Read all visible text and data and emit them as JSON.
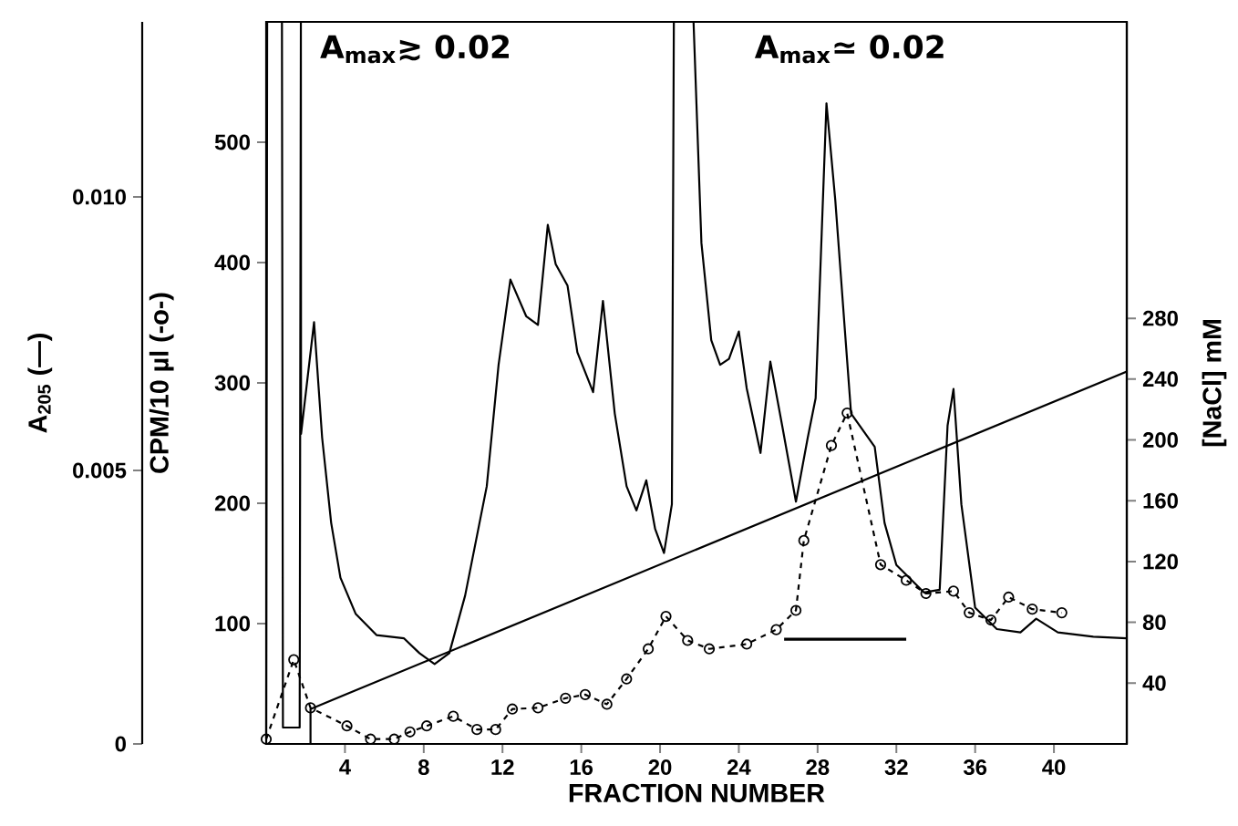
{
  "chart_data": {
    "type": "line",
    "xlabel": "FRACTION NUMBER",
    "ylabel": "CPM/10 µl (-o-)",
    "y2label": "[NaCl] mM",
    "y3label": "A$_{205}$  (—)",
    "xlim": [
      0,
      43.7
    ],
    "xticks": [
      4,
      8,
      12,
      16,
      20,
      24,
      28,
      32,
      36,
      40
    ],
    "ylim": [
      0,
      600
    ],
    "yticks": [
      100,
      200,
      300,
      400,
      500
    ],
    "y2lim": [
      0,
      475
    ],
    "y2ticks": [
      40,
      80,
      120,
      160,
      200,
      240,
      280
    ],
    "y3lim": [
      0,
      0.0132
    ],
    "y3ticks": [
      0,
      0.005,
      {
        "value": 0.01,
        "label": "0.010"
      }
    ],
    "annotations": [
      "A$_{max}$≳ 0.02",
      "A$_{max}$≃ 0.02"
    ],
    "series": [
      {
        "axis": "y3",
        "color": "#000000",
        "line_style": "solid",
        "marker": "none",
        "x": [
          0,
          0.05,
          0.8,
          0.85,
          1.7,
          1.76,
          1.77,
          2.43,
          2.84,
          3.3,
          3.77,
          4.54,
          5.6,
          7.0,
          7.78,
          8.55,
          9.3,
          10.1,
          11.2,
          11.8,
          12.4,
          13.2,
          13.8,
          14.3,
          14.7,
          15.3,
          15.8,
          16.6,
          17.1,
          17.7,
          18.3,
          18.8,
          19.3,
          19.75,
          20.2,
          20.6,
          20.7,
          21.7,
          22.1,
          22.6,
          23.05,
          23.5,
          24.0,
          24.4,
          25.1,
          25.6,
          26.2,
          26.9,
          27.5,
          27.9,
          28.45,
          28.9,
          29.4,
          29.7,
          30.9,
          31.4,
          32.0,
          33.4,
          34.2,
          34.6,
          34.9,
          35.3,
          36.0,
          37.1,
          38.3,
          39.1,
          40.2,
          42.0,
          43.7
        ],
        "values": [
          0.0001,
          0.0132,
          0.0132,
          0.0003,
          0.0003,
          0.0132,
          0.00567,
          0.00771,
          0.0056,
          0.00404,
          0.00304,
          0.00238,
          0.00199,
          0.00193,
          0.00166,
          0.00146,
          0.00166,
          0.00271,
          0.00471,
          0.00693,
          0.00849,
          0.00782,
          0.00766,
          0.00949,
          0.00877,
          0.00838,
          0.00716,
          0.00643,
          0.0081,
          0.00604,
          0.00471,
          0.00427,
          0.00482,
          0.00393,
          0.00349,
          0.00438,
          0.0132,
          0.0132,
          0.00916,
          0.00738,
          0.00693,
          0.00704,
          0.00754,
          0.0065,
          0.00532,
          0.00699,
          0.00582,
          0.00443,
          0.0056,
          0.00632,
          0.01171,
          0.00993,
          0.00749,
          0.00604,
          0.00543,
          0.00404,
          0.00327,
          0.00277,
          0.00282,
          0.00582,
          0.00649,
          0.00438,
          0.00249,
          0.0021,
          0.00204,
          0.00229,
          0.00204,
          0.00196,
          0.00193
        ]
      },
      {
        "axis": "y",
        "color": "#000000",
        "line_style": "dashed",
        "marker": "circle",
        "x": [
          0,
          1.4,
          2.25,
          4.1,
          5.3,
          6.5,
          7.3,
          8.15,
          9.5,
          10.7,
          11.65,
          12.5,
          13.8,
          15.2,
          16.2,
          17.3,
          18.3,
          19.4,
          20.3,
          21.4,
          22.5,
          24.4,
          25.9,
          26.9,
          27.3,
          28.7,
          29.5,
          31.2,
          32.5,
          33.5,
          34.9,
          35.7,
          36.8,
          37.7,
          38.9,
          40.4
        ],
        "values": [
          4,
          70,
          30,
          15,
          4,
          4,
          10,
          15,
          23,
          12,
          12,
          29,
          30,
          38,
          41,
          33,
          54,
          79,
          106,
          86,
          79,
          83,
          95,
          111,
          169,
          248,
          275,
          149,
          136,
          125,
          127,
          109,
          103,
          122,
          112,
          109
        ]
      },
      {
        "axis": "y",
        "color": "#000000",
        "line_style": "solid",
        "marker": "none",
        "x": [
          26.3,
          32.5
        ],
        "values": [
          87,
          87
        ]
      },
      {
        "axis": "y2",
        "color": "#000000",
        "line_style": "solid",
        "marker": "none",
        "x": [
          2.25,
          2.25,
          43.7
        ],
        "values": [
          0,
          23,
          245
        ]
      }
    ]
  }
}
